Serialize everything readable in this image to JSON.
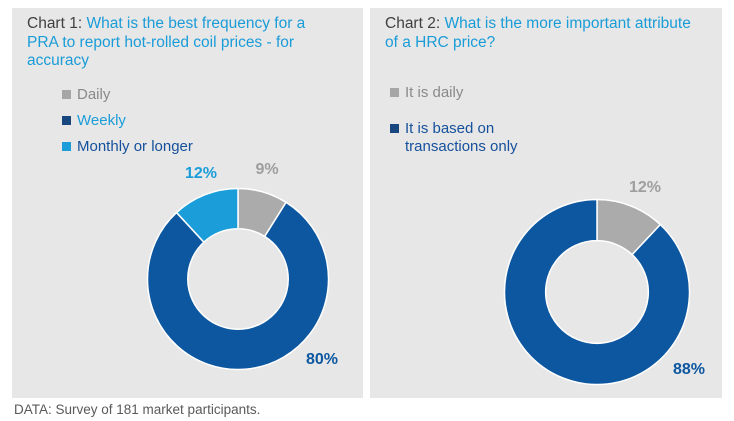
{
  "colors": {
    "panel_bg": "#e7e7e7",
    "title_prefix": "#404040",
    "title_question": "#1a9cd8",
    "footer_text": "#595959",
    "dark_blue": "#0c57a0",
    "light_blue": "#1b9dd9",
    "gray": "#ababab"
  },
  "footer": {
    "text": "DATA: Survey of 181 market participants."
  },
  "charts": [
    {
      "title_prefix": "Chart 1:",
      "title_question": "What is the best frequency for a PRA to report hot-rolled coil prices - for accuracy",
      "legend": [
        {
          "label": "Daily",
          "square_color": "#a6a6a6",
          "label_color": "#8a8a8a"
        },
        {
          "label": "Weekly",
          "square_color": "#17477e",
          "label_color": "#1b9dd9"
        },
        {
          "label": "Monthly or longer",
          "square_color": "#1b9dd9",
          "label_color": "#15509c"
        }
      ],
      "chart_data": {
        "type": "pie",
        "subtype": "donut",
        "title": "Chart 1: What is the best frequency for a PRA to report hot-rolled coil prices - for accuracy",
        "categories": [
          "Daily",
          "Weekly",
          "Monthly or longer"
        ],
        "values": [
          9,
          80,
          12
        ],
        "unit": "%",
        "data_labels": [
          "9%",
          "80%",
          "12%"
        ],
        "colors": [
          "#ababab",
          "#0c57a0",
          "#1b9dd9"
        ],
        "label_colors": [
          "#9e9e9e",
          "#0c57a0",
          "#1b9dd9"
        ],
        "start_angle_deg": 0,
        "direction": "clockwise",
        "hole_ratio": 0.555,
        "legend_position": "top-left"
      }
    },
    {
      "title_prefix": "Chart 2:",
      "title_question": "What is the more important attribute of a HRC price?",
      "legend": [
        {
          "label": "It is daily",
          "square_color": "#a6a6a6",
          "label_color": "#8a8a8a"
        },
        {
          "label": "It is based on transactions only",
          "square_color": "#17477e",
          "label_color": "#15509c"
        }
      ],
      "chart_data": {
        "type": "pie",
        "subtype": "donut",
        "title": "Chart 2: What is the more important attribute of a HRC price?",
        "categories": [
          "It is daily",
          "It is based on transactions only"
        ],
        "values": [
          12,
          88
        ],
        "unit": "%",
        "data_labels": [
          "12%",
          "88%"
        ],
        "colors": [
          "#ababab",
          "#0c57a0"
        ],
        "label_colors": [
          "#9e9e9e",
          "#0c57a0"
        ],
        "start_angle_deg": 0,
        "direction": "clockwise",
        "hole_ratio": 0.555,
        "legend_position": "top-left"
      }
    }
  ]
}
